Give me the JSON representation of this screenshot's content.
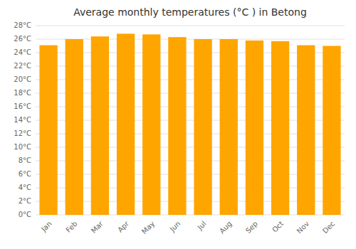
{
  "chart_data": {
    "type": "bar",
    "title": "Average monthly temperatures (°C ) in Betong",
    "categories": [
      "Jan",
      "Feb",
      "Mar",
      "Apr",
      "May",
      "Jun",
      "Jul",
      "Aug",
      "Sep",
      "Oct",
      "Nov",
      "Dec"
    ],
    "values": [
      25.1,
      26.0,
      26.4,
      26.8,
      26.7,
      26.3,
      26.0,
      26.0,
      25.8,
      25.7,
      25.1,
      25.0
    ],
    "color": "#FFA500",
    "ylim": [
      0,
      28
    ],
    "yticks": [
      {
        "value": 0,
        "label": "0°C"
      },
      {
        "value": 2,
        "label": "2°C"
      },
      {
        "value": 4,
        "label": "4°C"
      },
      {
        "value": 6,
        "label": "6°C"
      },
      {
        "value": 8,
        "label": "8°C"
      },
      {
        "value": 10,
        "label": "10°C"
      },
      {
        "value": 12,
        "label": "12°C"
      },
      {
        "value": 14,
        "label": "14°C"
      },
      {
        "value": 16,
        "label": "16°C"
      },
      {
        "value": 18,
        "label": "18°C"
      },
      {
        "value": 20,
        "label": "20°C"
      },
      {
        "value": 22,
        "label": "22°C"
      },
      {
        "value": 24,
        "label": "24°C"
      },
      {
        "value": 26,
        "label": "26°C"
      },
      {
        "value": 28,
        "label": "28°C"
      }
    ],
    "grid": true
  }
}
